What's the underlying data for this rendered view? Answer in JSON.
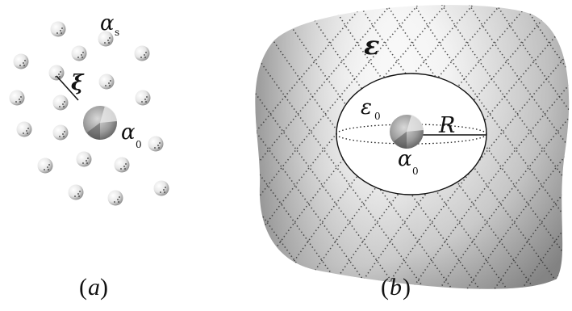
{
  "panel_a": {
    "caption_open": "(",
    "caption_letter": "a",
    "caption_close": ")",
    "labels": {
      "alpha_s_main": "α",
      "alpha_s_sub": "s",
      "xi": "ξ",
      "alpha_0_main": "α",
      "alpha_0_sub": "0"
    }
  },
  "panel_b": {
    "caption_open": "(",
    "caption_letter": "b",
    "caption_close": ")",
    "labels": {
      "epsilon": "ε",
      "epsilon_0_main": "ε",
      "epsilon_0_sub": "0",
      "radius": "R",
      "alpha_0_main": "α",
      "alpha_0_sub": "0"
    }
  },
  "colors": {
    "background": "#ffffff",
    "ink": "#111111",
    "sphere_light": "#ffffff",
    "sphere_dark": "#6f6f6f",
    "surface_light": "#ffffff",
    "surface_dark": "#7a7a7a"
  }
}
